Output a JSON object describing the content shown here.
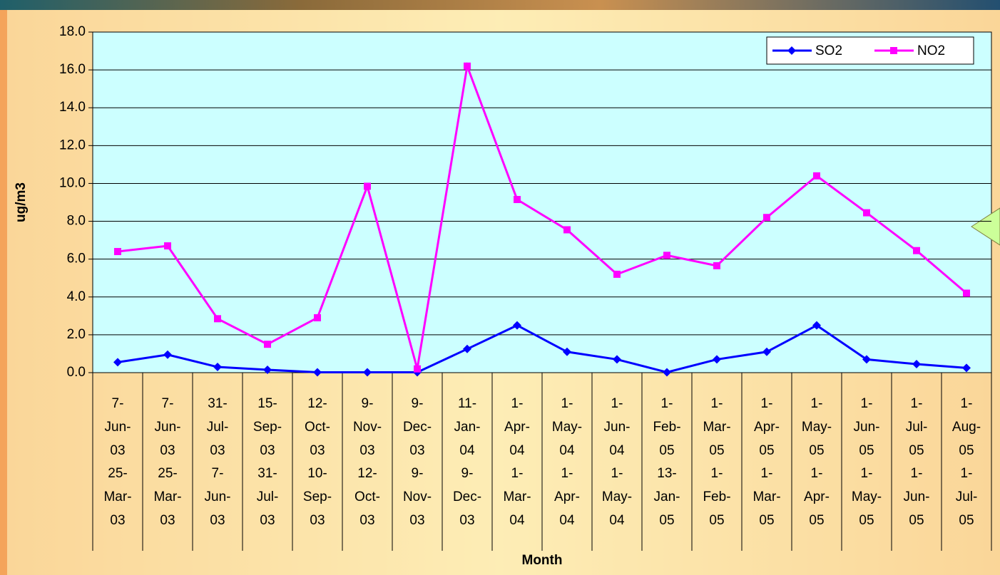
{
  "chart_data": {
    "type": "line",
    "ylabel": "ug/m3",
    "xlabel": "Month",
    "categories": [
      [
        "7-Jun-03",
        "25-Mar-03"
      ],
      [
        "7-Jun-03",
        "25-Mar-03"
      ],
      [
        "31-Jul-03",
        "7-Jun-03"
      ],
      [
        "15-Sep-03",
        "31-Jul-03"
      ],
      [
        "12-Oct-03",
        "10-Sep-03"
      ],
      [
        "9-Nov-03",
        "12-Oct-03"
      ],
      [
        "9-Dec-03",
        "9-Nov-03"
      ],
      [
        "11-Jan-04",
        "9-Dec-03"
      ],
      [
        "1-Apr-04",
        "1-Mar-04"
      ],
      [
        "1-May-04",
        "1-Apr-04"
      ],
      [
        "1-Jun-04",
        "1-May-04"
      ],
      [
        "1-Feb-05",
        "13-Jan-05"
      ],
      [
        "1-Mar-05",
        "1-Feb-05"
      ],
      [
        "1-Apr-05",
        "1-Mar-05"
      ],
      [
        "1-May-05",
        "1-Apr-05"
      ],
      [
        "1-Jun-05",
        "1-May-05"
      ],
      [
        "1-Jul-05",
        "1-Jun-05"
      ],
      [
        "1-Aug-05",
        "1-Jul-05"
      ]
    ],
    "series": [
      {
        "name": "SO2",
        "color": "#0000ff",
        "marker": "diamond",
        "values": [
          0.55,
          0.95,
          0.3,
          0.15,
          0.02,
          0.02,
          0.02,
          1.25,
          2.5,
          1.1,
          0.7,
          0.02,
          0.7,
          1.1,
          2.5,
          0.7,
          0.45,
          0.25
        ]
      },
      {
        "name": "NO2",
        "color": "#ff00ff",
        "marker": "square",
        "values": [
          6.4,
          6.7,
          2.85,
          1.5,
          2.9,
          9.85,
          0.2,
          16.2,
          9.15,
          7.55,
          5.2,
          6.2,
          5.65,
          8.2,
          10.4,
          8.45,
          6.45,
          4.2
        ]
      }
    ],
    "ylim": [
      0,
      18
    ],
    "yticks": [
      {
        "value": 0,
        "label": "0.0"
      },
      {
        "value": 2,
        "label": "2.0"
      },
      {
        "value": 4,
        "label": "4.0"
      },
      {
        "value": 6,
        "label": "6.0"
      },
      {
        "value": 8,
        "label": "8.0"
      },
      {
        "value": 10,
        "label": "10.0"
      },
      {
        "value": 12,
        "label": "12.0"
      },
      {
        "value": 14,
        "label": "14.0"
      },
      {
        "value": 16,
        "label": "16.0"
      },
      {
        "value": 18,
        "label": "18.0"
      }
    ],
    "grid": true,
    "legend": "top-right",
    "plot_background": "#ccffff"
  }
}
